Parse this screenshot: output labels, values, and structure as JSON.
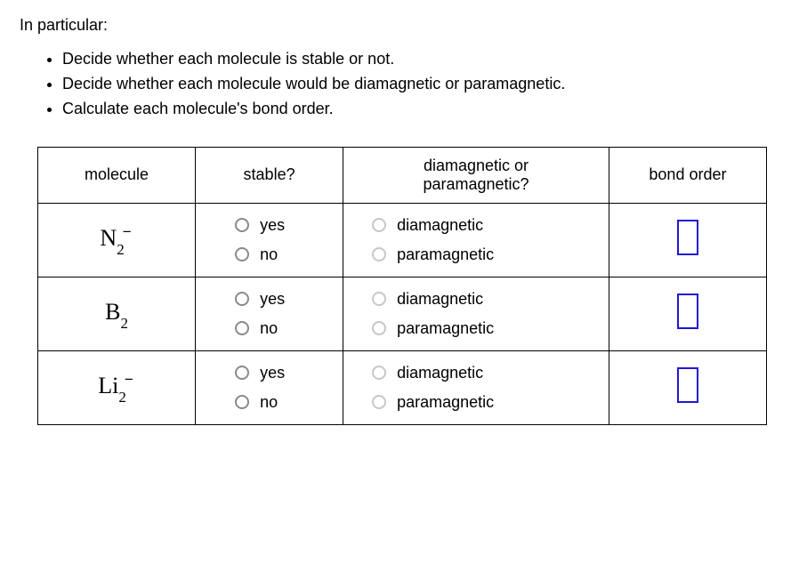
{
  "intro": "In particular:",
  "bullets": {
    "b1": "Decide whether each molecule is stable or not.",
    "b2": "Decide whether each molecule would be diamagnetic or paramagnetic.",
    "b3": "Calculate each molecule's bond order."
  },
  "headers": {
    "molecule": "molecule",
    "stable": "stable?",
    "magnet_line1": "diamagnetic or",
    "magnet_line2": "paramagnetic?",
    "bond": "bond order"
  },
  "labels": {
    "yes": "yes",
    "no": "no",
    "dia": "diamagnetic",
    "para": "paramagnetic"
  },
  "molecules": {
    "m1": {
      "base": "N",
      "sub": "2",
      "sup": "−"
    },
    "m2": {
      "base": "B",
      "sub": "2",
      "sup": ""
    },
    "m3": {
      "base": "Li",
      "sub": "2",
      "sup": "−"
    }
  }
}
